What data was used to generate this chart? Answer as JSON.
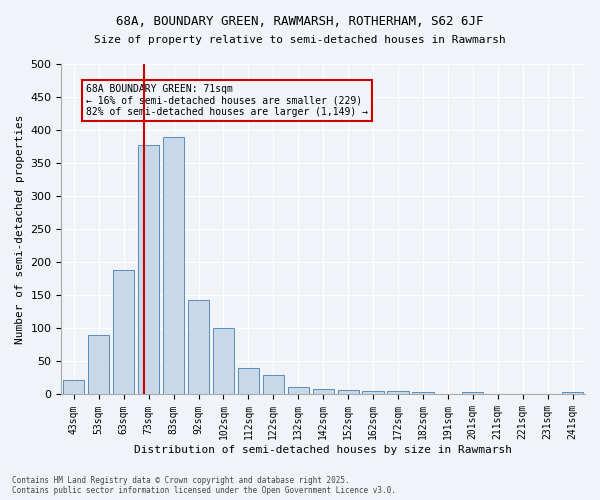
{
  "title_line1": "68A, BOUNDARY GREEN, RAWMARSH, ROTHERHAM, S62 6JF",
  "title_line2": "Size of property relative to semi-detached houses in Rawmarsh",
  "xlabel": "Distribution of semi-detached houses by size in Rawmarsh",
  "ylabel": "Number of semi-detached properties",
  "bar_color": "#c8d8e8",
  "bar_edge_color": "#5b8db8",
  "categories": [
    "43sqm",
    "53sqm",
    "63sqm",
    "73sqm",
    "83sqm",
    "92sqm",
    "102sqm",
    "112sqm",
    "122sqm",
    "132sqm",
    "142sqm",
    "152sqm",
    "162sqm",
    "172sqm",
    "182sqm",
    "191sqm",
    "201sqm",
    "211sqm",
    "221sqm",
    "231sqm",
    "241sqm"
  ],
  "values": [
    22,
    90,
    188,
    378,
    390,
    143,
    101,
    40,
    29,
    12,
    9,
    7,
    6,
    5,
    3,
    0,
    4,
    0,
    0,
    0,
    4
  ],
  "vline_x": 2.0,
  "vline_color": "#cc0000",
  "annotation_title": "68A BOUNDARY GREEN: 71sqm",
  "annotation_line1": "← 16% of semi-detached houses are smaller (229)",
  "annotation_line2": "82% of semi-detached houses are larger (1,149) →",
  "ylim": [
    0,
    500
  ],
  "yticks": [
    0,
    50,
    100,
    150,
    200,
    250,
    300,
    350,
    400,
    450,
    500
  ],
  "background_color": "#f0f4f8",
  "grid_color": "#ffffff",
  "footer_line1": "Contains HM Land Registry data © Crown copyright and database right 2025.",
  "footer_line2": "Contains public sector information licensed under the Open Government Licence v3.0."
}
